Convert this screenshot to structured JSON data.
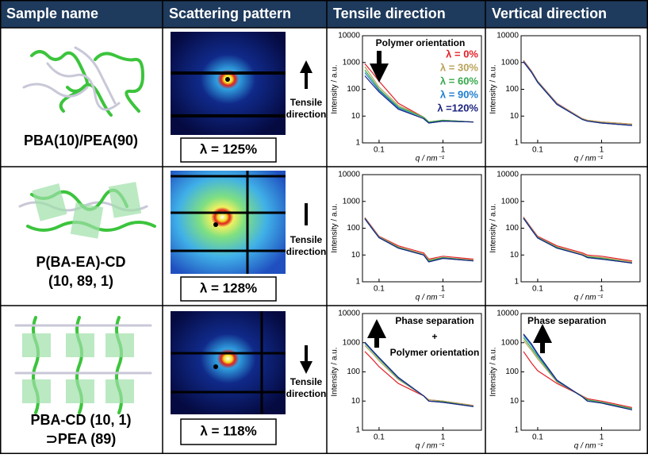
{
  "table": {
    "headers": [
      "Sample name",
      "Scattering pattern",
      "Tensile direction",
      "Vertical direction"
    ],
    "rows": [
      {
        "sample": [
          "PBA(10)/PEA(90)"
        ],
        "pattern_label": "λ = 125%",
        "direction": [
          "Tensile",
          "direction"
        ]
      },
      {
        "sample": [
          "P(BA-EA)-CD",
          "(10, 89, 1)"
        ],
        "pattern_label": "λ = 128%",
        "direction": [
          "Tensile",
          "direction"
        ]
      },
      {
        "sample": [
          "PBA-CD (10, 1)",
          "⊃PEA (89)"
        ],
        "pattern_label": "λ = 118%",
        "direction": [
          "Tensile",
          "direction"
        ]
      }
    ]
  },
  "chart_data": [
    {
      "type": "line",
      "x_label": "q / nm⁻¹",
      "y_label": "Intensity / a.u.",
      "log_x": true,
      "log_y": true,
      "x": [
        0.06,
        0.08,
        0.1,
        0.2,
        0.5,
        0.6,
        1,
        3
      ],
      "xlim": [
        0.055,
        4
      ],
      "ylim": [
        1,
        10000
      ],
      "xticks": [
        0.1,
        1
      ],
      "yticks": [
        1,
        10,
        100,
        1000,
        10000
      ],
      "annotations": [
        "Polymer orientation"
      ],
      "series": [
        {
          "name": "λ =    0%",
          "color": "#e32028",
          "values": [
            900,
            400,
            200,
            30,
            9,
            6,
            7,
            6
          ]
        },
        {
          "name": "λ =  30%",
          "color": "#b9a25a",
          "values": [
            700,
            260,
            120,
            25,
            9,
            6,
            7,
            6
          ]
        },
        {
          "name": "λ =  60%",
          "color": "#36a84a",
          "values": [
            520,
            210,
            100,
            22,
            9,
            6,
            7,
            6
          ]
        },
        {
          "name": "λ =  90%",
          "color": "#1f7ed0",
          "values": [
            420,
            175,
            90,
            20,
            8,
            5.5,
            6.5,
            6
          ]
        },
        {
          "name": "λ =120%",
          "color": "#1b237e",
          "values": [
            320,
            145,
            80,
            18,
            8,
            5.5,
            6.5,
            6
          ]
        }
      ]
    },
    {
      "type": "line",
      "x_label": "q / nm⁻¹",
      "y_label": "Intensity / a.u.",
      "log_x": true,
      "log_y": true,
      "x": [
        0.06,
        0.08,
        0.1,
        0.2,
        0.5,
        0.6,
        1,
        3
      ],
      "xlim": [
        0.055,
        4
      ],
      "ylim": [
        1,
        10000
      ],
      "xticks": [
        0.1,
        1
      ],
      "yticks": [
        1,
        10,
        100,
        1000,
        10000
      ],
      "annotations": [],
      "series": [
        {
          "color": "#e32028",
          "values": [
            1200,
            480,
            200,
            30,
            8,
            7,
            6,
            5
          ]
        },
        {
          "color": "#b9a25a",
          "values": [
            1150,
            460,
            195,
            29,
            8,
            7,
            6,
            5
          ]
        },
        {
          "color": "#36a84a",
          "values": [
            1100,
            450,
            190,
            28,
            7.5,
            6.5,
            5.5,
            4.5
          ]
        },
        {
          "color": "#1f7ed0",
          "values": [
            1100,
            440,
            185,
            28,
            7.5,
            6.5,
            5.5,
            4.5
          ]
        },
        {
          "color": "#1b237e",
          "values": [
            1050,
            430,
            180,
            27,
            7.5,
            6.5,
            5.5,
            4.5
          ]
        }
      ]
    },
    {
      "type": "line",
      "x_label": "q / nm⁻¹",
      "y_label": "Intensity / a.u.",
      "log_x": true,
      "log_y": true,
      "x": [
        0.06,
        0.08,
        0.1,
        0.2,
        0.5,
        0.6,
        1,
        3
      ],
      "xlim": [
        0.055,
        4
      ],
      "ylim": [
        1,
        10000
      ],
      "xticks": [
        0.1,
        1
      ],
      "yticks": [
        1,
        10,
        100,
        1000,
        10000
      ],
      "annotations": [],
      "series": [
        {
          "color": "#e32028",
          "values": [
            250,
            100,
            50,
            22,
            12,
            7,
            9,
            7
          ]
        },
        {
          "color": "#b9a25a",
          "values": [
            240,
            95,
            48,
            20,
            11,
            6.5,
            8,
            6.5
          ]
        },
        {
          "color": "#36a84a",
          "values": [
            235,
            92,
            46,
            19,
            10,
            6,
            8,
            6
          ]
        },
        {
          "color": "#1f7ed0",
          "values": [
            230,
            90,
            45,
            18,
            10,
            5.5,
            7.5,
            6
          ]
        },
        {
          "color": "#1b237e",
          "values": [
            225,
            88,
            44,
            18,
            10,
            5.5,
            7.5,
            6
          ]
        }
      ]
    },
    {
      "type": "line",
      "x_label": "q / nm⁻¹",
      "y_label": "Intensity / a.u.",
      "log_x": true,
      "log_y": true,
      "x": [
        0.06,
        0.08,
        0.1,
        0.2,
        0.5,
        0.6,
        1,
        3
      ],
      "xlim": [
        0.055,
        4
      ],
      "ylim": [
        1,
        10000
      ],
      "xticks": [
        0.1,
        1
      ],
      "yticks": [
        1,
        10,
        100,
        1000,
        10000
      ],
      "annotations": [],
      "series": [
        {
          "color": "#e32028",
          "values": [
            260,
            100,
            50,
            22,
            12,
            10,
            9,
            6
          ]
        },
        {
          "color": "#b9a25a",
          "values": [
            250,
            95,
            47,
            20,
            11,
            9,
            8,
            5.5
          ]
        },
        {
          "color": "#36a84a",
          "values": [
            245,
            92,
            45,
            19,
            10,
            8.5,
            7.5,
            5
          ]
        },
        {
          "color": "#1f7ed0",
          "values": [
            240,
            90,
            44,
            18,
            10,
            8,
            7,
            5
          ]
        },
        {
          "color": "#1b237e",
          "values": [
            235,
            88,
            43,
            18,
            10,
            8,
            7,
            5
          ]
        }
      ]
    },
    {
      "type": "line",
      "x_label": "q / nm⁻¹",
      "y_label": "Intensity / a.u.",
      "log_x": true,
      "log_y": true,
      "x": [
        0.06,
        0.08,
        0.1,
        0.2,
        0.5,
        0.6,
        1,
        3
      ],
      "xlim": [
        0.055,
        4
      ],
      "ylim": [
        1,
        10000
      ],
      "xticks": [
        0.1,
        1
      ],
      "yticks": [
        1,
        10,
        100,
        1000,
        10000
      ],
      "annotations": [
        "Phase separation",
        "+",
        "Polymer orientation"
      ],
      "series": [
        {
          "color": "#e32028",
          "values": [
            500,
            260,
            150,
            40,
            15,
            11,
            10,
            7
          ]
        },
        {
          "color": "#b9a25a",
          "values": [
            800,
            420,
            240,
            55,
            15,
            11,
            10,
            7
          ]
        },
        {
          "color": "#36a84a",
          "values": [
            950,
            480,
            280,
            60,
            15,
            10,
            9.5,
            6.5
          ]
        },
        {
          "color": "#1f7ed0",
          "values": [
            1000,
            500,
            300,
            62,
            15,
            10,
            9,
            6.5
          ]
        },
        {
          "color": "#1b237e",
          "values": [
            1050,
            520,
            310,
            65,
            15,
            10,
            9,
            6.5
          ]
        }
      ]
    },
    {
      "type": "line",
      "x_label": "q / nm⁻¹",
      "y_label": "Intensity / a.u.",
      "log_x": true,
      "log_y": true,
      "x": [
        0.06,
        0.08,
        0.1,
        0.2,
        0.5,
        0.6,
        1,
        3
      ],
      "xlim": [
        0.055,
        4
      ],
      "ylim": [
        1,
        10000
      ],
      "xticks": [
        0.1,
        1
      ],
      "yticks": [
        1,
        10,
        100,
        1000,
        10000
      ],
      "annotations": [
        "Phase separation"
      ],
      "series": [
        {
          "color": "#e32028",
          "values": [
            500,
            200,
            110,
            40,
            15,
            12,
            10,
            6
          ]
        },
        {
          "color": "#b9a25a",
          "values": [
            1200,
            550,
            280,
            45,
            15,
            11,
            9,
            5.5
          ]
        },
        {
          "color": "#36a84a",
          "values": [
            1500,
            650,
            330,
            48,
            14,
            11,
            9,
            5.5
          ]
        },
        {
          "color": "#1f7ed0",
          "values": [
            1800,
            800,
            380,
            50,
            14,
            10,
            8.5,
            5
          ]
        },
        {
          "color": "#1b237e",
          "values": [
            2000,
            900,
            420,
            52,
            14,
            10,
            8.5,
            5
          ]
        }
      ]
    }
  ]
}
